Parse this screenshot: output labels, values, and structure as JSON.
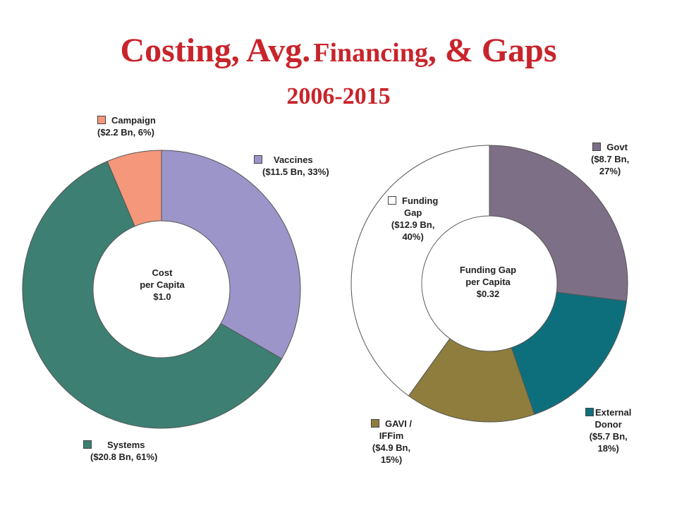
{
  "title": {
    "part1": "Costing, Avg.",
    "part2": "Financing",
    "part3": ", & Gaps"
  },
  "subtitle": "2006-2015",
  "chart_data": [
    {
      "type": "pie",
      "categories": [
        "Vaccines",
        "Systems",
        "Campaign"
      ],
      "values": [
        11.5,
        20.8,
        2.2
      ],
      "percents": [
        33,
        61,
        6
      ],
      "colors": [
        "#9b95c9",
        "#3d7f73",
        "#f4977a"
      ],
      "labels": [
        [
          "Vaccines",
          "($11.5 Bn, 33%)"
        ],
        [
          "Systems",
          "($20.8 Bn, 61%)"
        ],
        [
          "Campaign",
          "($2.2 Bn, 6%)"
        ]
      ],
      "center_text": [
        "Cost",
        "per Capita",
        "$1.0"
      ]
    },
    {
      "type": "pie",
      "categories": [
        "Govt",
        "External Donor",
        "GAVI / IFFIm",
        "Funding Gap"
      ],
      "values": [
        8.7,
        5.7,
        4.9,
        12.9
      ],
      "percents": [
        27,
        18,
        15,
        40
      ],
      "colors": [
        "#7d6f86",
        "#0e6f7c",
        "#8e7d3c",
        "#ffffff"
      ],
      "labels": [
        [
          "Govt",
          "($8.7 Bn,",
          "27%)"
        ],
        [
          "External",
          "Donor",
          "($5.7 Bn,",
          "18%)"
        ],
        [
          "GAVI /",
          "IFFim",
          "($4.9 Bn,",
          "15%)"
        ],
        [
          "Funding",
          "Gap",
          "($12.9 Bn,",
          "40%)"
        ]
      ],
      "center_text": [
        "Funding Gap",
        "per Capita",
        "$0.32"
      ]
    }
  ]
}
